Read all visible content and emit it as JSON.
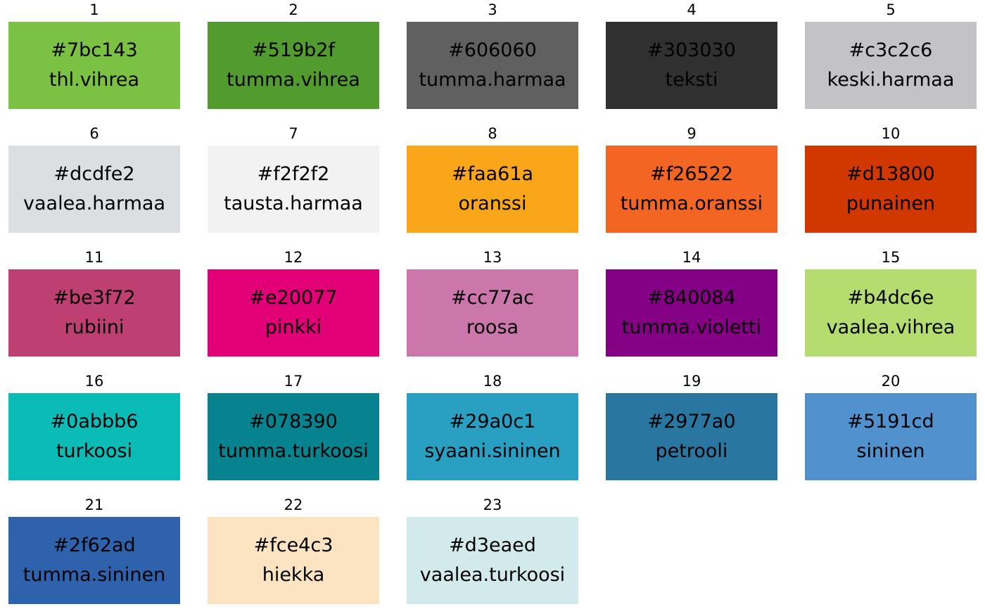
{
  "swatches": [
    {
      "number": "1",
      "hex": "#7bc143",
      "name": "thl.vihrea",
      "color": "#7bc143"
    },
    {
      "number": "2",
      "hex": "#519b2f",
      "name": "tumma.vihrea",
      "color": "#519b2f"
    },
    {
      "number": "3",
      "hex": "#606060",
      "name": "tumma.harmaa",
      "color": "#606060"
    },
    {
      "number": "4",
      "hex": "#303030",
      "name": "teksti",
      "color": "#303030"
    },
    {
      "number": "5",
      "hex": "#c3c2c6",
      "name": "keski.harmaa",
      "color": "#c3c2c6"
    },
    {
      "number": "6",
      "hex": "#dcdfe2",
      "name": "vaalea.harmaa",
      "color": "#dcdfe2"
    },
    {
      "number": "7",
      "hex": "#f2f2f2",
      "name": "tausta.harmaa",
      "color": "#f2f2f2"
    },
    {
      "number": "8",
      "hex": "#faa61a",
      "name": "oranssi",
      "color": "#faa61a"
    },
    {
      "number": "9",
      "hex": "#f26522",
      "name": "tumma.oranssi",
      "color": "#f26522"
    },
    {
      "number": "10",
      "hex": "#d13800",
      "name": "punainen",
      "color": "#d13800"
    },
    {
      "number": "11",
      "hex": "#be3f72",
      "name": "rubiini",
      "color": "#be3f72"
    },
    {
      "number": "12",
      "hex": "#e20077",
      "name": "pinkki",
      "color": "#e20077"
    },
    {
      "number": "13",
      "hex": "#cc77ac",
      "name": "roosa",
      "color": "#cc77ac"
    },
    {
      "number": "14",
      "hex": "#840084",
      "name": "tumma.violetti",
      "color": "#840084"
    },
    {
      "number": "15",
      "hex": "#b4dc6e",
      "name": "vaalea.vihrea",
      "color": "#b4dc6e"
    },
    {
      "number": "16",
      "hex": "#0abbb6",
      "name": "turkoosi",
      "color": "#0abbb6"
    },
    {
      "number": "17",
      "hex": "#078390",
      "name": "tumma.turkoosi",
      "color": "#078390"
    },
    {
      "number": "18",
      "hex": "#29a0c1",
      "name": "syaani.sininen",
      "color": "#29a0c1"
    },
    {
      "number": "19",
      "hex": "#2977a0",
      "name": "petrooli",
      "color": "#2977a0"
    },
    {
      "number": "20",
      "hex": "#5191cd",
      "name": "sininen",
      "color": "#5191cd"
    },
    {
      "number": "21",
      "hex": "#2f62ad",
      "name": "tumma.sininen",
      "color": "#2f62ad"
    },
    {
      "number": "22",
      "hex": "#fce4c3",
      "name": "hiekka",
      "color": "#fce4c3"
    },
    {
      "number": "23",
      "hex": "#d3eaed",
      "name": "vaalea.turkoosi",
      "color": "#d3eaed"
    }
  ]
}
